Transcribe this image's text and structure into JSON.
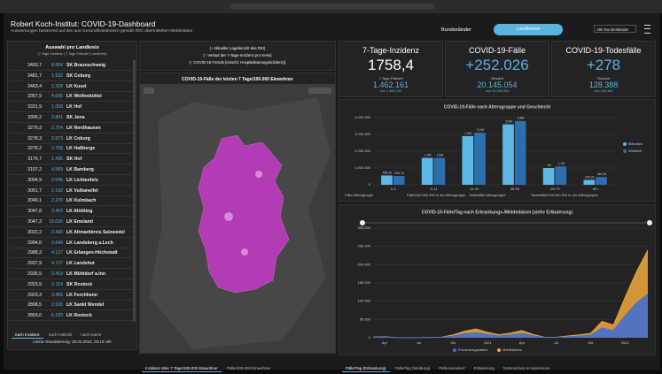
{
  "header": {
    "title": "Robert Koch-Institut: COVID-19-Dashboard",
    "subtitle": "Auswertungen basierend auf den aus Gesundheitsämtern gemäß IfSG übermittelten Meldedaten",
    "buttons": [
      "Bundesländer",
      "Landkreise"
    ],
    "dropdown": "Alle Bundesländer"
  },
  "sidebar": {
    "title": "Auswahl pro Landkreis",
    "subtitle": "(7-Tage-Inzidenz | 7-Tage-Fallzahl | Landkreis)",
    "rows": [
      [
        "3493,7",
        "8.684",
        "SK Braunschweig"
      ],
      [
        "3481,7",
        "1.522",
        "SK Coburg"
      ],
      [
        "3463,4",
        "2.328",
        "LK Kusel"
      ],
      [
        "3357,9",
        "4.006",
        "LK Wolfenbüttel"
      ],
      [
        "3331,9",
        "1.050",
        "LK Hof"
      ],
      [
        "3306,2",
        "3.861",
        "SK Jena"
      ],
      [
        "3279,3",
        "2.704",
        "LK Nordhausen"
      ],
      [
        "3278,3",
        "2.873",
        "LK Coburg"
      ],
      [
        "3278,2",
        "2.708",
        "LK Haßberge"
      ],
      [
        "3176,7",
        "1.435",
        "SK Hof"
      ],
      [
        "3107,2",
        "4.583",
        "LK Bamberg"
      ],
      [
        "3094,9",
        "2.045",
        "LK Lichtenfels"
      ],
      [
        "3051,7",
        "2.192",
        "LK Vulkaneifel"
      ],
      [
        "3049,1",
        "2.270",
        "LK Kulmbach"
      ],
      [
        "3047,8",
        "3.403",
        "LK Altötting"
      ],
      [
        "3047,3",
        "10.026",
        "LK Emsland"
      ],
      [
        "3022,2",
        "2.499",
        "LK Altmarkkreis Salzwedel"
      ],
      [
        "2994,0",
        "3.649",
        "LK Landsberg a.Lech"
      ],
      [
        "2988,3",
        "4.127",
        "LK Erlangen-Höchstadt"
      ],
      [
        "2937,9",
        "4.727",
        "LK Landshut"
      ],
      [
        "2936,5",
        "3.410",
        "LK Mühldorf a.Inn"
      ],
      [
        "2923,9",
        "6.114",
        "SK Rostock"
      ],
      [
        "2923,3",
        "3.405",
        "LK Forchheim"
      ],
      [
        "2898,5",
        "2.520",
        "LK Sankt Wendel"
      ],
      [
        "2893,0",
        "6.220",
        "LK Rostock"
      ]
    ],
    "tabs": [
      "nach Inzidenz",
      "nach Fallzahl",
      "nach Name"
    ],
    "footer": "Letzte Aktualisierung: 26.03.2022, 03:19 Uhr"
  },
  "links": [
    "(↑ Aktueller Lagebericht des RKI)",
    "(↑ Verlauf der 7-Tage-Inzidenz pro Kreis)",
    "(↑ COVID-19-Trends (einschl. Hospitalisierungsinzidenz))"
  ],
  "map": {
    "title": "COVID-19-Fälle der letzten 7 Tage/100.000 Einwohner",
    "tabs": [
      "Inzidenz über 7 Tage/100.000 Einwohner",
      "Fälle/100.000 Einwohner"
    ]
  },
  "kpis": [
    {
      "title": "7-Tage-Inzidenz",
      "value": "1758,4",
      "sub_label": "7-Tage-Fallzahl",
      "sub_value": "1.462.161",
      "sub_note": "von 1.462.161"
    },
    {
      "title": "COVID-19-Fälle",
      "value": "+252.026",
      "sub_label": "Gesamt",
      "sub_value": "20.145.054",
      "sub_note": "von 20.145.054"
    },
    {
      "title": "COVID-19-Todesfälle",
      "value": "+278",
      "sub_label": "Gesamt",
      "sub_value": "128.388",
      "sub_note": "von 128.388"
    }
  ],
  "chart_data": [
    {
      "type": "bar",
      "title": "COVID-19-Fälle nach Altersgruppe und Geschlecht",
      "categories": [
        "0-4",
        "5-14",
        "15-34",
        "35-59",
        "60-79",
        "80+"
      ],
      "series": [
        {
          "name": "Männlich",
          "color": "#5cb9e6",
          "values": [
            556300,
            1600000,
            2900000,
            3600000,
            1000000,
            290200
          ],
          "value_labels": [
            "556,3k",
            "1,6M",
            "2,9M",
            "3,6M",
            "1M",
            "290,2k"
          ]
        },
        {
          "name": "Weiblich",
          "color": "#2d6fae",
          "values": [
            526700,
            1600000,
            3100000,
            3800000,
            1100000,
            461200
          ],
          "value_labels": [
            "526,7k",
            "1,6M",
            "3,1M",
            "3,8M",
            "1,1M",
            "461,2k"
          ]
        }
      ],
      "ylim": [
        0,
        4000000
      ],
      "yticks": [
        0,
        {
          "value": 1000000,
          "label": "1.000.000"
        },
        {
          "value": 2000000,
          "label": "2.000.000"
        },
        {
          "value": 3000000,
          "label": "3.000.000"
        },
        {
          "value": 4000000,
          "label": "4.000.000"
        }
      ],
      "grid": true,
      "tabs": [
        "Fälle Altersgruppe",
        "Fälle/100.000 EW in der Altersgruppe",
        "Todesfälle Altersgruppe",
        "Todesfälle/100.000 EW in der Altersgruppe"
      ]
    },
    {
      "type": "area",
      "title": "COVID-19-Fälle/Tag nach Erkrankungs-/Meldedatum (siehe Erläuterung)",
      "categories": [
        null,
        "Apr",
        null,
        null,
        "Jul",
        null,
        null,
        "Okt",
        null,
        null,
        "2021",
        null,
        null,
        "Apr",
        null,
        null,
        "Jul",
        null,
        null,
        "Okt",
        null,
        null,
        "2022",
        null,
        null
      ],
      "series": [
        {
          "name": "Meldedatum",
          "color": "#f2a93b",
          "values": [
            2000,
            3000,
            700,
            400,
            500,
            1200,
            1800,
            8000,
            18000,
            24000,
            15000,
            8500,
            13000,
            20000,
            9000,
            1500,
            1500,
            5000,
            8000,
            12000,
            45000,
            35000,
            110000,
            180000,
            240000
          ]
        },
        {
          "name": "Erkrankungsdatum",
          "color": "#3b6fd6",
          "values": [
            1500,
            2000,
            500,
            300,
            350,
            800,
            1200,
            5000,
            11000,
            14000,
            9000,
            5000,
            8000,
            12000,
            5500,
            900,
            900,
            3000,
            5000,
            7000,
            27000,
            20000,
            60000,
            95000,
            120000
          ]
        }
      ],
      "ylim": [
        0,
        300000
      ],
      "yticks": [
        0,
        {
          "value": 50000,
          "label": "50.000"
        },
        {
          "value": 100000,
          "label": "100.000"
        },
        {
          "value": 150000,
          "label": "150.000"
        },
        {
          "value": 200000,
          "label": "200.000"
        },
        {
          "value": 250000,
          "label": "250.000"
        },
        {
          "value": 300000,
          "label": "300.000"
        }
      ],
      "grid": true,
      "tabs": [
        "Fälle/Tag (Erkrankung)",
        "Fälle/Tag (Meldung)",
        "Fälle kumuliert",
        "Erläuterung",
        "Datenschutz & Impressum"
      ]
    }
  ]
}
